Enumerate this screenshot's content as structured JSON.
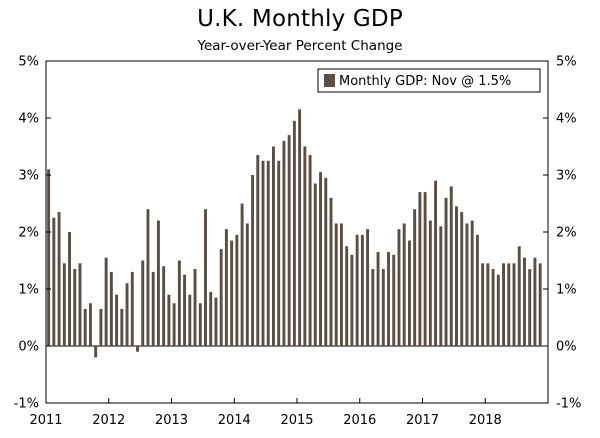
{
  "chart_data": {
    "type": "bar",
    "title": "U.K. Monthly GDP",
    "subtitle": "Year-over-Year Percent Change",
    "xlabel": "",
    "ylabel": "",
    "ylim": [
      -1,
      5
    ],
    "yticks": [
      "-1%",
      "0%",
      "1%",
      "2%",
      "3%",
      "4%",
      "5%"
    ],
    "ytick_values": [
      -1,
      0,
      1,
      2,
      3,
      4,
      5
    ],
    "xticks": [
      "2011",
      "2012",
      "2013",
      "2014",
      "2015",
      "2016",
      "2017",
      "2018"
    ],
    "series": [
      {
        "name": "Monthly GDP: Nov @ 1.5%",
        "color": "#5b4f45",
        "start": "2011-01",
        "values": [
          3.1,
          2.25,
          2.35,
          1.45,
          2.0,
          1.35,
          1.45,
          0.65,
          0.75,
          -0.2,
          0.65,
          1.55,
          1.3,
          0.9,
          0.65,
          1.1,
          1.3,
          -0.1,
          1.5,
          2.4,
          1.3,
          2.2,
          1.4,
          0.9,
          0.75,
          1.5,
          1.25,
          0.9,
          1.35,
          0.75,
          2.4,
          0.95,
          0.85,
          1.7,
          2.05,
          1.85,
          1.95,
          2.5,
          2.15,
          3.0,
          3.35,
          3.25,
          3.25,
          3.5,
          3.25,
          3.6,
          3.7,
          3.95,
          4.15,
          3.5,
          3.35,
          2.85,
          3.05,
          2.95,
          2.6,
          2.15,
          2.15,
          1.75,
          1.6,
          1.95,
          1.95,
          2.05,
          1.35,
          1.65,
          1.35,
          1.65,
          1.6,
          2.05,
          2.15,
          1.85,
          2.4,
          2.7,
          2.7,
          2.2,
          2.9,
          2.1,
          2.6,
          2.8,
          2.45,
          2.35,
          2.15,
          2.2,
          1.95,
          1.45,
          1.45,
          1.35,
          1.25,
          1.45,
          1.45,
          1.45,
          1.75,
          1.55,
          1.35,
          1.55,
          1.45
        ]
      }
    ],
    "legend": {
      "position": "top-right",
      "label": "Monthly GDP: Nov @ 1.5%"
    }
  }
}
